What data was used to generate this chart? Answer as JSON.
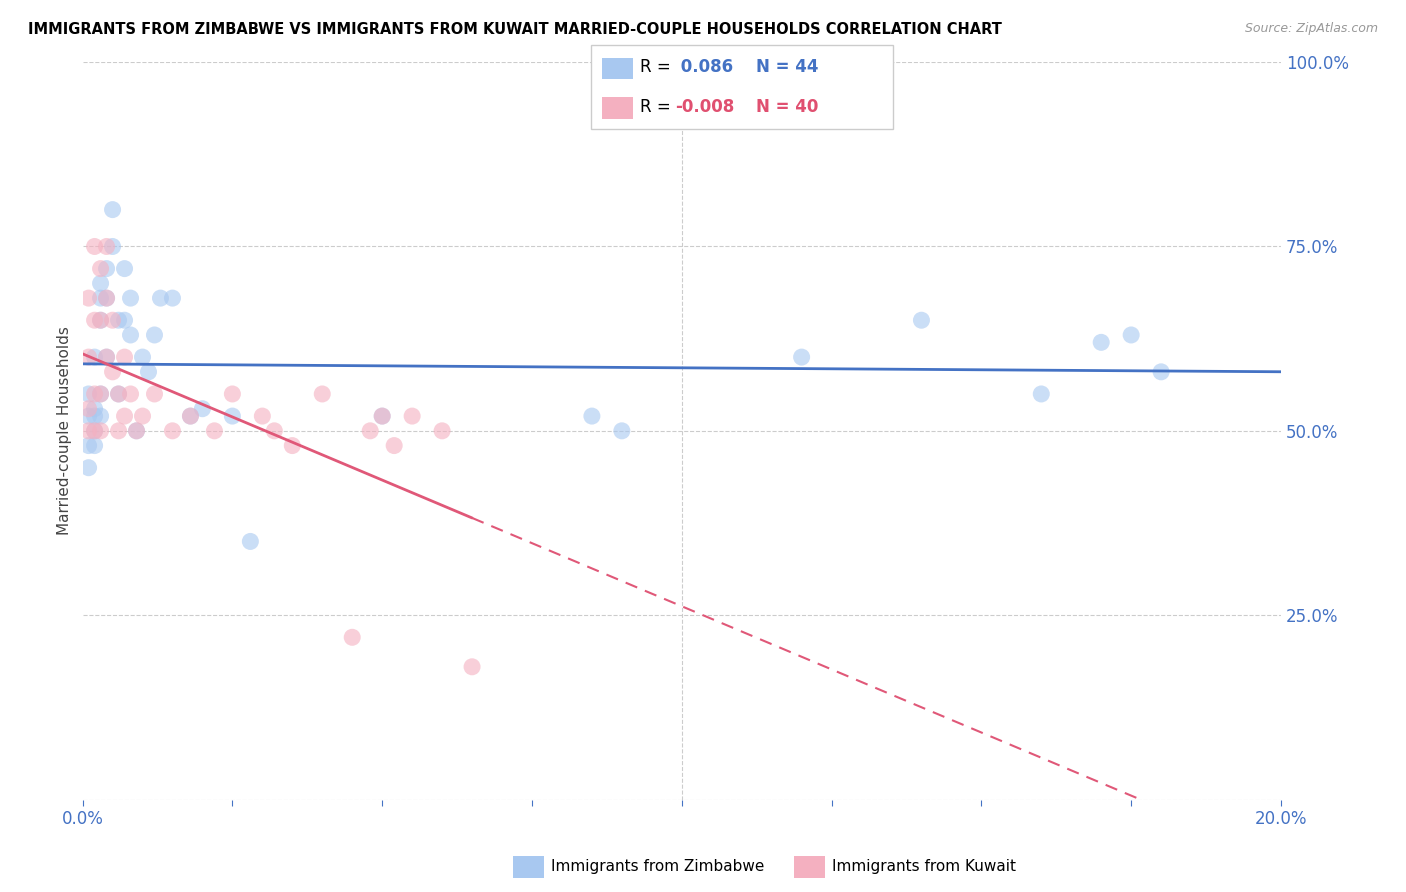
{
  "title": "IMMIGRANTS FROM ZIMBABWE VS IMMIGRANTS FROM KUWAIT MARRIED-COUPLE HOUSEHOLDS CORRELATION CHART",
  "source": "Source: ZipAtlas.com",
  "ylabel": "Married-couple Households",
  "ytick_labels": [
    "",
    "25.0%",
    "50.0%",
    "75.0%",
    "100.0%"
  ],
  "color_zimbabwe": "#A8C8F0",
  "color_kuwait": "#F4B0C0",
  "color_line_zimbabwe": "#4472C4",
  "color_line_kuwait": "#E05878",
  "color_text_blue": "#4472C4",
  "color_r_zimbabwe": "#4472C4",
  "color_r_kuwait": "#E05070",
  "zimbabwe_x": [
    0.001,
    0.001,
    0.001,
    0.001,
    0.002,
    0.002,
    0.002,
    0.002,
    0.002,
    0.003,
    0.003,
    0.003,
    0.003,
    0.003,
    0.004,
    0.004,
    0.004,
    0.005,
    0.005,
    0.006,
    0.006,
    0.007,
    0.007,
    0.008,
    0.008,
    0.009,
    0.01,
    0.011,
    0.012,
    0.013,
    0.015,
    0.018,
    0.02,
    0.025,
    0.028,
    0.05,
    0.085,
    0.09,
    0.12,
    0.14,
    0.16,
    0.17,
    0.175,
    0.18
  ],
  "zimbabwe_y": [
    0.52,
    0.55,
    0.48,
    0.45,
    0.53,
    0.5,
    0.6,
    0.48,
    0.52,
    0.65,
    0.7,
    0.68,
    0.55,
    0.52,
    0.72,
    0.68,
    0.6,
    0.8,
    0.75,
    0.65,
    0.55,
    0.72,
    0.65,
    0.68,
    0.63,
    0.5,
    0.6,
    0.58,
    0.63,
    0.68,
    0.68,
    0.52,
    0.53,
    0.52,
    0.35,
    0.52,
    0.52,
    0.5,
    0.6,
    0.65,
    0.55,
    0.62,
    0.63,
    0.58
  ],
  "kuwait_x": [
    0.001,
    0.001,
    0.001,
    0.001,
    0.002,
    0.002,
    0.002,
    0.002,
    0.003,
    0.003,
    0.003,
    0.003,
    0.004,
    0.004,
    0.004,
    0.005,
    0.005,
    0.006,
    0.006,
    0.007,
    0.007,
    0.008,
    0.009,
    0.01,
    0.012,
    0.015,
    0.018,
    0.022,
    0.025,
    0.03,
    0.032,
    0.035,
    0.04,
    0.045,
    0.048,
    0.05,
    0.052,
    0.055,
    0.06,
    0.065
  ],
  "kuwait_y": [
    0.53,
    0.68,
    0.6,
    0.5,
    0.75,
    0.65,
    0.55,
    0.5,
    0.72,
    0.65,
    0.55,
    0.5,
    0.75,
    0.68,
    0.6,
    0.65,
    0.58,
    0.55,
    0.5,
    0.6,
    0.52,
    0.55,
    0.5,
    0.52,
    0.55,
    0.5,
    0.52,
    0.5,
    0.55,
    0.52,
    0.5,
    0.48,
    0.55,
    0.22,
    0.5,
    0.52,
    0.48,
    0.52,
    0.5,
    0.18
  ],
  "xlim": [
    0.0,
    0.2
  ],
  "ylim": [
    0.0,
    1.0
  ],
  "bg_color": "#FFFFFF",
  "marker_size": 150,
  "marker_alpha": 0.6,
  "grid_color": "#CCCCCC",
  "grid_style": "--",
  "grid_lw": 0.8
}
